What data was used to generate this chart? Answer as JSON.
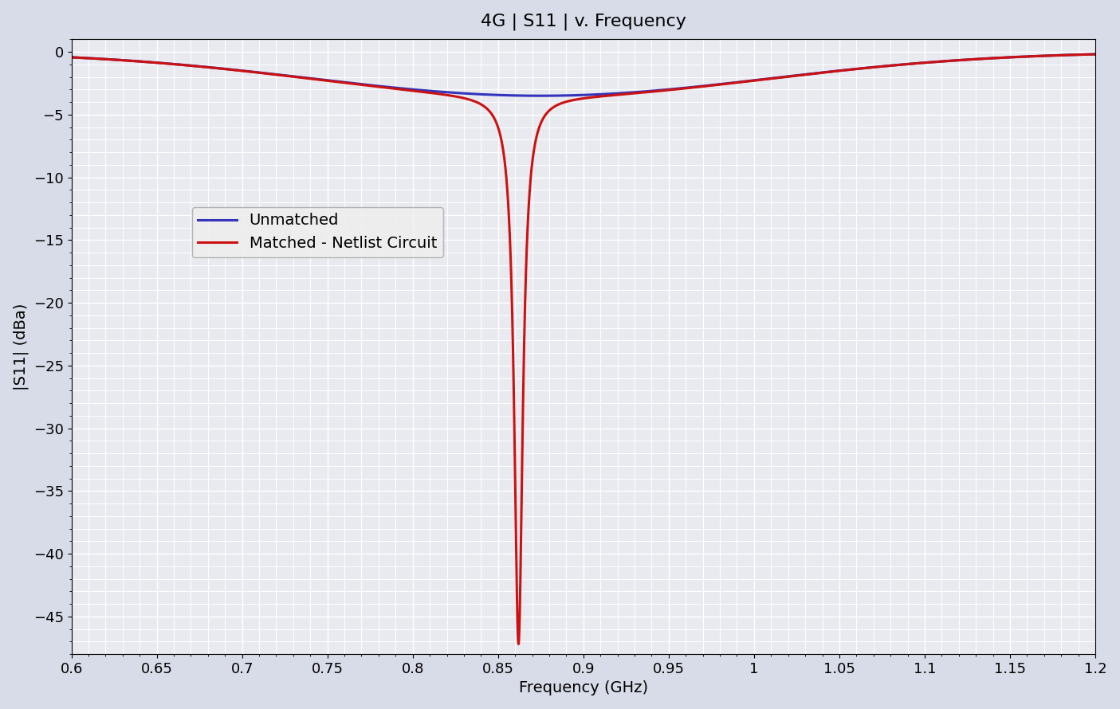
{
  "title": "4G | S11 | v. Frequency",
  "xlabel": "Frequency (GHz)",
  "ylabel": "|S11| (dBa)",
  "xlim": [
    0.6,
    1.2
  ],
  "ylim": [
    -48,
    1
  ],
  "yticks": [
    0,
    -5,
    -10,
    -15,
    -20,
    -25,
    -30,
    -35,
    -40,
    -45
  ],
  "xticks": [
    0.6,
    0.65,
    0.7,
    0.75,
    0.8,
    0.85,
    0.9,
    0.95,
    1.0,
    1.05,
    1.1,
    1.15,
    1.2
  ],
  "line_blue_label": "Unmatched",
  "line_red_label": "Matched - Netlist Circuit",
  "line_blue_color": "#3333bb",
  "line_red_color": "#cc1111",
  "fig_bg_color": "#d8dce8",
  "ax_bg_color": "#e8eaf0",
  "grid_color": "#ffffff",
  "title_fontsize": 16,
  "axis_fontsize": 14,
  "tick_fontsize": 13,
  "legend_fontsize": 14,
  "blue_f0": 0.875,
  "blue_depth": -3.5,
  "blue_bw": 0.38,
  "red_f0": 0.862,
  "red_depth": -47.2,
  "red_narrow_bw": 0.006,
  "red_broad_depth": -3.5,
  "red_broad_bw": 0.38
}
